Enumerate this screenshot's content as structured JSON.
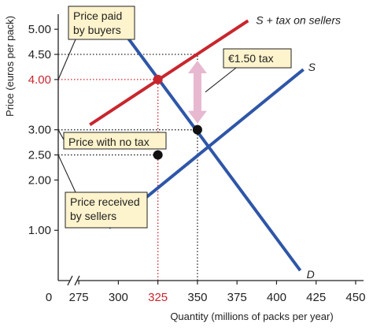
{
  "chart_data": {
    "type": "line",
    "title": "",
    "xlabel": "Quantity (millions of packs per year)",
    "ylabel": "Price (euros per pack)",
    "x_axis_break": true,
    "origin_label": "0",
    "xlim": [
      262,
      455
    ],
    "ylim": [
      0,
      5.3
    ],
    "x_ticks": [
      {
        "value": 275,
        "label": "275"
      },
      {
        "value": 300,
        "label": "300"
      },
      {
        "value": 325,
        "label": "325",
        "highlight": true
      },
      {
        "value": 350,
        "label": "350"
      },
      {
        "value": 375,
        "label": "375"
      },
      {
        "value": 400,
        "label": "400"
      },
      {
        "value": 425,
        "label": "425"
      },
      {
        "value": 450,
        "label": "450"
      }
    ],
    "y_ticks": [
      {
        "value": 1.0,
        "label": "1.00"
      },
      {
        "value": 2.0,
        "label": "2.00"
      },
      {
        "value": 2.5,
        "label": "2.50"
      },
      {
        "value": 3.0,
        "label": "3.00"
      },
      {
        "value": 4.0,
        "label": "4.00",
        "highlight": true
      },
      {
        "value": 4.5,
        "label": "4.50"
      },
      {
        "value": 5.0,
        "label": "5.00"
      }
    ],
    "series": [
      {
        "name": "S + tax on sellers",
        "color": "#c8262e",
        "points": [
          [
            282,
            3.1
          ],
          [
            382,
            5.17
          ]
        ]
      },
      {
        "name": "S",
        "color": "#2e56a8",
        "points": [
          [
            294,
            1.05
          ],
          [
            417,
            4.2
          ]
        ]
      },
      {
        "name": "D",
        "color": "#2e56a8",
        "points": [
          [
            302,
            5.0
          ],
          [
            415,
            0.2
          ]
        ]
      }
    ],
    "points": [
      {
        "x": 325,
        "y": 4.0,
        "color": "#c8262e"
      },
      {
        "x": 350,
        "y": 3.0,
        "color": "#111111"
      },
      {
        "x": 325,
        "y": 2.5,
        "color": "#111111"
      }
    ],
    "guides": [
      {
        "from": [
          262,
          4.5
        ],
        "to": [
          350,
          4.5
        ],
        "color": "#222222"
      },
      {
        "from": [
          262,
          4.0
        ],
        "to": [
          325,
          4.0
        ],
        "color": "#c8262e"
      },
      {
        "from": [
          262,
          3.0
        ],
        "to": [
          350,
          3.0
        ],
        "color": "#222222"
      },
      {
        "from": [
          262,
          2.5
        ],
        "to": [
          325,
          2.5
        ],
        "color": "#222222"
      },
      {
        "from": [
          325,
          0
        ],
        "to": [
          325,
          4.0
        ],
        "color": "#c8262e"
      },
      {
        "from": [
          350,
          0
        ],
        "to": [
          350,
          4.5
        ],
        "color": "#222222"
      }
    ],
    "tax_arrow": {
      "x": 350,
      "y_from": 3.0,
      "y_to": 4.5,
      "color": "#e7b8cf"
    },
    "annotations": [
      {
        "text": "Price paid by buyers",
        "lines": [
          "Price paid",
          "by buyers"
        ],
        "target": [
          262,
          4.0
        ]
      },
      {
        "text": "€1.50 tax",
        "lines": [
          "€1.50 tax"
        ],
        "target": [
          355,
          3.75
        ]
      },
      {
        "text": "Price with no tax",
        "lines": [
          "Price with no tax"
        ],
        "target": [
          262,
          3.0
        ]
      },
      {
        "text": "Price received by sellers",
        "lines": [
          "Price received",
          "by sellers"
        ],
        "target": [
          262,
          2.5
        ]
      }
    ]
  }
}
